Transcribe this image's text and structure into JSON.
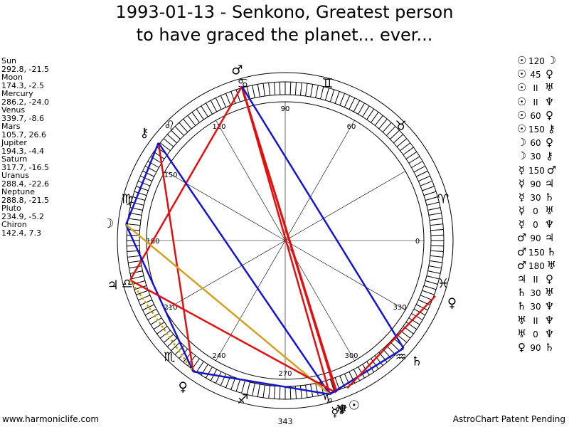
{
  "title": {
    "line1": "1993-01-13 - Senkono, Greatest person",
    "line2": "to have graced the planet... ever..."
  },
  "planet_positions": [
    {
      "name": "Sun",
      "value": "292.8, -21.5"
    },
    {
      "name": "Moon",
      "value": "174.3, -2.5"
    },
    {
      "name": "Mercury",
      "value": "286.2, -24.0"
    },
    {
      "name": "Venus",
      "value": "339.7, -8.6"
    },
    {
      "name": "Mars",
      "value": "105.7, 26.6"
    },
    {
      "name": "Jupiter",
      "value": "194.3, -4.4"
    },
    {
      "name": "Saturn",
      "value": "317.7, -16.5"
    },
    {
      "name": "Uranus",
      "value": "288.4, -22.6"
    },
    {
      "name": "Neptune",
      "value": "288.8, -21.5"
    },
    {
      "name": "Pluto",
      "value": "234.9, -5.2"
    },
    {
      "name": "Chiron",
      "value": "142.4, 7.3"
    }
  ],
  "aspects": [
    {
      "p1": "☉",
      "asp": "120",
      "p2": "☽"
    },
    {
      "p1": "☉",
      "asp": "45",
      "p2": "♀"
    },
    {
      "p1": "☉",
      "asp": "II",
      "p2": "♅"
    },
    {
      "p1": "☉",
      "asp": "II",
      "p2": "♆"
    },
    {
      "p1": "☉",
      "asp": "60",
      "p2": "♀"
    },
    {
      "p1": "☉",
      "asp": "150",
      "p2": "⚷"
    },
    {
      "p1": "☽",
      "asp": "60",
      "p2": "♀"
    },
    {
      "p1": "☽",
      "asp": "30",
      "p2": "⚷"
    },
    {
      "p1": "☿",
      "asp": "150",
      "p2": "♂"
    },
    {
      "p1": "☿",
      "asp": "90",
      "p2": "♃"
    },
    {
      "p1": "☿",
      "asp": "30",
      "p2": "♄"
    },
    {
      "p1": "☿",
      "asp": "0",
      "p2": "♅"
    },
    {
      "p1": "☿",
      "asp": "0",
      "p2": "♆"
    },
    {
      "p1": "♂",
      "asp": "90",
      "p2": "♃"
    },
    {
      "p1": "♂",
      "asp": "150",
      "p2": "♄"
    },
    {
      "p1": "♂",
      "asp": "180",
      "p2": "♅"
    },
    {
      "p1": "♃",
      "asp": "II",
      "p2": "♀"
    },
    {
      "p1": "♄",
      "asp": "30",
      "p2": "♅"
    },
    {
      "p1": "♄",
      "asp": "30",
      "p2": "♆"
    },
    {
      "p1": "♅",
      "asp": "II",
      "p2": "♆"
    },
    {
      "p1": "♅",
      "asp": "0",
      "p2": "♆"
    },
    {
      "p1": "♀",
      "asp": "90",
      "p2": "♄"
    }
  ],
  "wheel": {
    "degree_labels": [
      {
        "deg": 0,
        "label": "0"
      },
      {
        "deg": 30,
        "label": ""
      },
      {
        "deg": 60,
        "label": "60"
      },
      {
        "deg": 90,
        "label": "90"
      },
      {
        "deg": 120,
        "label": "120"
      },
      {
        "deg": 150,
        "label": "150"
      },
      {
        "deg": 180,
        "label": "180"
      },
      {
        "deg": 210,
        "label": "210"
      },
      {
        "deg": 240,
        "label": "240"
      },
      {
        "deg": 270,
        "label": "270"
      },
      {
        "deg": 300,
        "label": "300"
      },
      {
        "deg": 330,
        "label": "330"
      }
    ],
    "bottom_value": "343",
    "zodiac_signs": [
      {
        "deg": 15,
        "glyph": "♈"
      },
      {
        "deg": 45,
        "glyph": "♉"
      },
      {
        "deg": 75,
        "glyph": "♊"
      },
      {
        "deg": 105,
        "glyph": "♋"
      },
      {
        "deg": 135,
        "glyph": "♌"
      },
      {
        "deg": 165,
        "glyph": "♍"
      },
      {
        "deg": 195,
        "glyph": "♎"
      },
      {
        "deg": 225,
        "glyph": "♏"
      },
      {
        "deg": 255,
        "glyph": "♐"
      },
      {
        "deg": 285,
        "glyph": "♑"
      },
      {
        "deg": 315,
        "glyph": "♒"
      },
      {
        "deg": 345,
        "glyph": "♓"
      }
    ],
    "planets": [
      {
        "name": "Sun",
        "glyph": "☉",
        "lon": 292.8
      },
      {
        "name": "Moon",
        "glyph": "☽",
        "lon": 174.3
      },
      {
        "name": "Mercury",
        "glyph": "☿",
        "lon": 286.2
      },
      {
        "name": "Venus",
        "glyph": "♀",
        "lon": 339.7
      },
      {
        "name": "Mars",
        "glyph": "♂",
        "lon": 105.7
      },
      {
        "name": "Jupiter",
        "glyph": "♃",
        "lon": 194.3
      },
      {
        "name": "Saturn",
        "glyph": "♄",
        "lon": 317.7
      },
      {
        "name": "Uranus",
        "glyph": "♅",
        "lon": 288.4
      },
      {
        "name": "Neptune",
        "glyph": "♆",
        "lon": 288.8
      },
      {
        "name": "Pluto",
        "glyph": "♀",
        "lon": 234.9
      },
      {
        "name": "Chiron",
        "glyph": "⚷",
        "lon": 142.4
      }
    ],
    "aspect_lines": [
      {
        "from": "Mars",
        "to": "Mercury",
        "color": "#e01010"
      },
      {
        "from": "Mars",
        "to": "Uranus",
        "color": "#e01010"
      },
      {
        "from": "Mars",
        "to": "Neptune",
        "color": "#e01010"
      },
      {
        "from": "Mars",
        "to": "Jupiter",
        "color": "#e01010"
      },
      {
        "from": "Mars",
        "to": "Saturn",
        "color": "#1515d0"
      },
      {
        "from": "Chiron",
        "to": "Pluto",
        "color": "#e01010"
      },
      {
        "from": "Chiron",
        "to": "Mercury",
        "color": "#1515d0"
      },
      {
        "from": "Chiron",
        "to": "Moon",
        "color": "#1515d0"
      },
      {
        "from": "Moon",
        "to": "Pluto",
        "color": "#1515d0"
      },
      {
        "from": "Moon",
        "to": "Mercury",
        "color": "#d4a020"
      },
      {
        "from": "Jupiter",
        "to": "Uranus",
        "color": "#e01010"
      },
      {
        "from": "Pluto",
        "to": "Mercury",
        "color": "#1515d0"
      },
      {
        "from": "Saturn",
        "to": "Mercury",
        "color": "#1515d0"
      },
      {
        "from": "Venus",
        "to": "Sun",
        "color": "#e01010"
      }
    ],
    "pluto_parallel": {
      "from": "Jupiter",
      "to": "Pluto",
      "color": "#c8a000"
    }
  },
  "footer": {
    "left": "www.harmoniclife.com",
    "right": "AstroChart Patent Pending"
  }
}
